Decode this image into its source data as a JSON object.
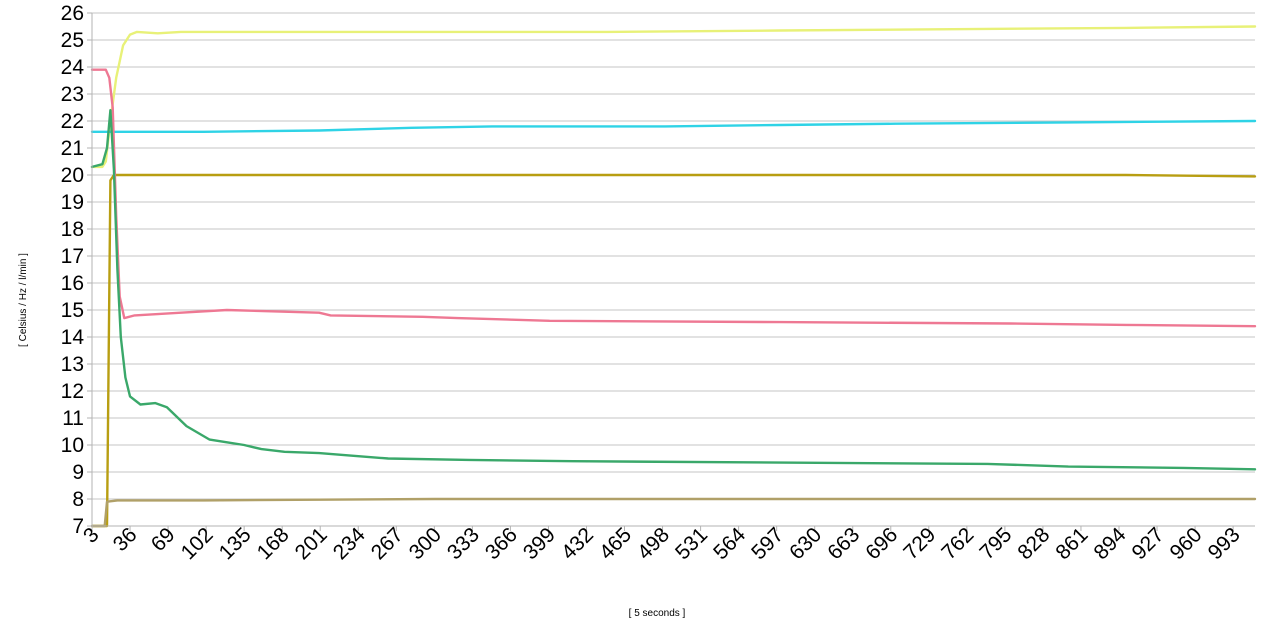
{
  "chart_data": {
    "type": "line",
    "title": "",
    "xlabel": "[ 5 seconds ]",
    "ylabel": "[ Celsius / Hz / l/min ]",
    "xlim": [
      3,
      1012
    ],
    "ylim": [
      7,
      26
    ],
    "yticks": [
      7,
      8,
      9,
      10,
      11,
      12,
      13,
      14,
      15,
      16,
      17,
      18,
      19,
      20,
      21,
      22,
      23,
      24,
      25,
      26
    ],
    "xticks": [
      3,
      36,
      69,
      102,
      135,
      168,
      201,
      234,
      267,
      300,
      333,
      366,
      399,
      432,
      465,
      498,
      531,
      564,
      597,
      630,
      663,
      696,
      729,
      762,
      795,
      828,
      861,
      894,
      927,
      960,
      993
    ],
    "grid": true,
    "legend": "none",
    "series": [
      {
        "color": "#e8f178",
        "points": [
          [
            3,
            20.3
          ],
          [
            12,
            20.3
          ],
          [
            15,
            20.5
          ],
          [
            19,
            22.0
          ],
          [
            24,
            23.6
          ],
          [
            30,
            24.8
          ],
          [
            36,
            25.2
          ],
          [
            42,
            25.3
          ],
          [
            60,
            25.25
          ],
          [
            80,
            25.3
          ],
          [
            200,
            25.3
          ],
          [
            450,
            25.3
          ],
          [
            600,
            25.35
          ],
          [
            750,
            25.4
          ],
          [
            900,
            25.45
          ],
          [
            1012,
            25.5
          ]
        ]
      },
      {
        "color": "#2fd3e6",
        "points": [
          [
            3,
            21.6
          ],
          [
            100,
            21.6
          ],
          [
            200,
            21.65
          ],
          [
            280,
            21.75
          ],
          [
            350,
            21.8
          ],
          [
            500,
            21.8
          ],
          [
            600,
            21.85
          ],
          [
            700,
            21.9
          ],
          [
            850,
            21.95
          ],
          [
            1012,
            22.0
          ]
        ]
      },
      {
        "color": "#b89e12",
        "points": [
          [
            3,
            7.0
          ],
          [
            16,
            7.0
          ],
          [
            19,
            19.8
          ],
          [
            22,
            20.0
          ],
          [
            100,
            20.0
          ],
          [
            300,
            20.0
          ],
          [
            600,
            20.0
          ],
          [
            900,
            20.0
          ],
          [
            1012,
            19.95
          ]
        ]
      },
      {
        "color": "#ee7893",
        "points": [
          [
            3,
            23.9
          ],
          [
            15,
            23.9
          ],
          [
            18,
            23.6
          ],
          [
            21,
            22.5
          ],
          [
            24,
            18.5
          ],
          [
            27,
            15.5
          ],
          [
            31,
            14.7
          ],
          [
            40,
            14.8
          ],
          [
            80,
            14.9
          ],
          [
            120,
            15.0
          ],
          [
            200,
            14.9
          ],
          [
            210,
            14.8
          ],
          [
            290,
            14.75
          ],
          [
            320,
            14.7
          ],
          [
            400,
            14.6
          ],
          [
            600,
            14.55
          ],
          [
            800,
            14.5
          ],
          [
            900,
            14.45
          ],
          [
            1012,
            14.4
          ]
        ]
      },
      {
        "color": "#3aa86a",
        "points": [
          [
            3,
            20.3
          ],
          [
            12,
            20.4
          ],
          [
            16,
            21.0
          ],
          [
            19,
            22.4
          ],
          [
            22,
            20.2
          ],
          [
            25,
            16.5
          ],
          [
            28,
            14.0
          ],
          [
            32,
            12.5
          ],
          [
            36,
            11.8
          ],
          [
            45,
            11.5
          ],
          [
            58,
            11.55
          ],
          [
            68,
            11.4
          ],
          [
            85,
            10.7
          ],
          [
            105,
            10.2
          ],
          [
            120,
            10.1
          ],
          [
            135,
            10.0
          ],
          [
            150,
            9.85
          ],
          [
            170,
            9.75
          ],
          [
            200,
            9.7
          ],
          [
            230,
            9.6
          ],
          [
            260,
            9.5
          ],
          [
            330,
            9.45
          ],
          [
            420,
            9.4
          ],
          [
            600,
            9.35
          ],
          [
            780,
            9.3
          ],
          [
            850,
            9.2
          ],
          [
            950,
            9.15
          ],
          [
            1012,
            9.1
          ]
        ]
      },
      {
        "color": "#b0a068",
        "points": [
          [
            3,
            7.0
          ],
          [
            14,
            7.0
          ],
          [
            16,
            7.9
          ],
          [
            25,
            7.95
          ],
          [
            100,
            7.95
          ],
          [
            300,
            8.0
          ],
          [
            600,
            8.0
          ],
          [
            900,
            8.0
          ],
          [
            1012,
            8.0
          ]
        ]
      }
    ]
  }
}
